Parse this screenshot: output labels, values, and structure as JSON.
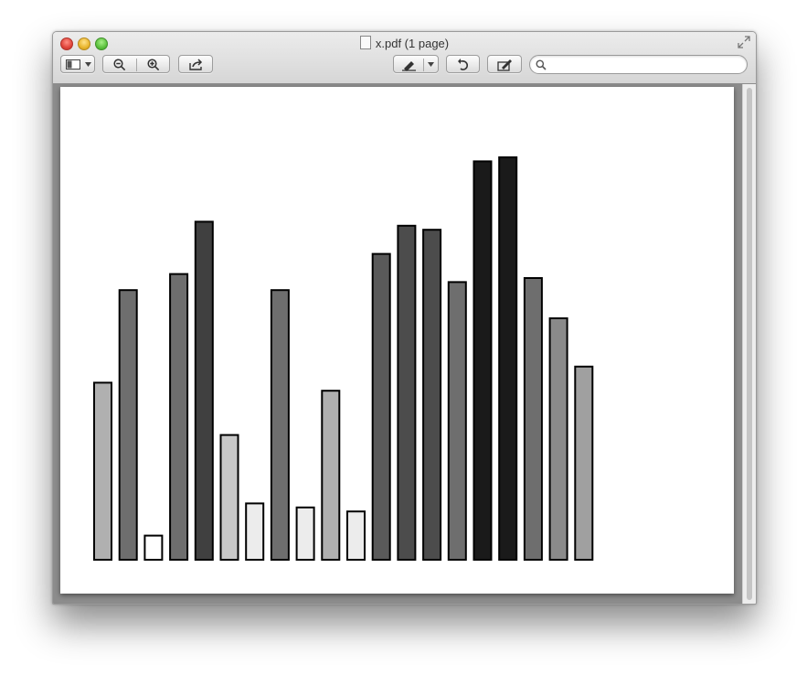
{
  "window": {
    "title": "x.pdf (1 page)"
  },
  "toolbar": {
    "sidebar_icon": "sidebar-icon",
    "zoom_out_icon": "zoom-out-icon",
    "zoom_in_icon": "zoom-in-icon",
    "share_icon": "share-icon",
    "markup_icon": "highlight-pen-icon",
    "rotate_icon": "rotate-icon",
    "edit_icon": "edit-toolbar-icon",
    "search_icon": "search-icon",
    "search_value": ""
  },
  "chart_data": {
    "type": "bar",
    "title": "",
    "xlabel": "",
    "ylabel": "",
    "grid": false,
    "legend": "none",
    "ylim": [
      0,
      100
    ],
    "values": [
      44,
      67,
      6,
      71,
      84,
      31,
      14,
      67,
      13,
      42,
      12,
      76,
      83,
      82,
      69,
      99,
      100,
      70,
      60,
      48
    ],
    "fills": [
      "#b0b0b0",
      "#6e6e6e",
      "#ffffff",
      "#6e6e6e",
      "#404040",
      "#c8c8c8",
      "#ececec",
      "#6e6e6e",
      "#ececec",
      "#b0b0b0",
      "#ececec",
      "#5a5a5a",
      "#4c4c4c",
      "#4c4c4c",
      "#6e6e6e",
      "#1a1a1a",
      "#1a1a1a",
      "#6e6e6e",
      "#8a8a8a",
      "#a0a0a0"
    ]
  }
}
